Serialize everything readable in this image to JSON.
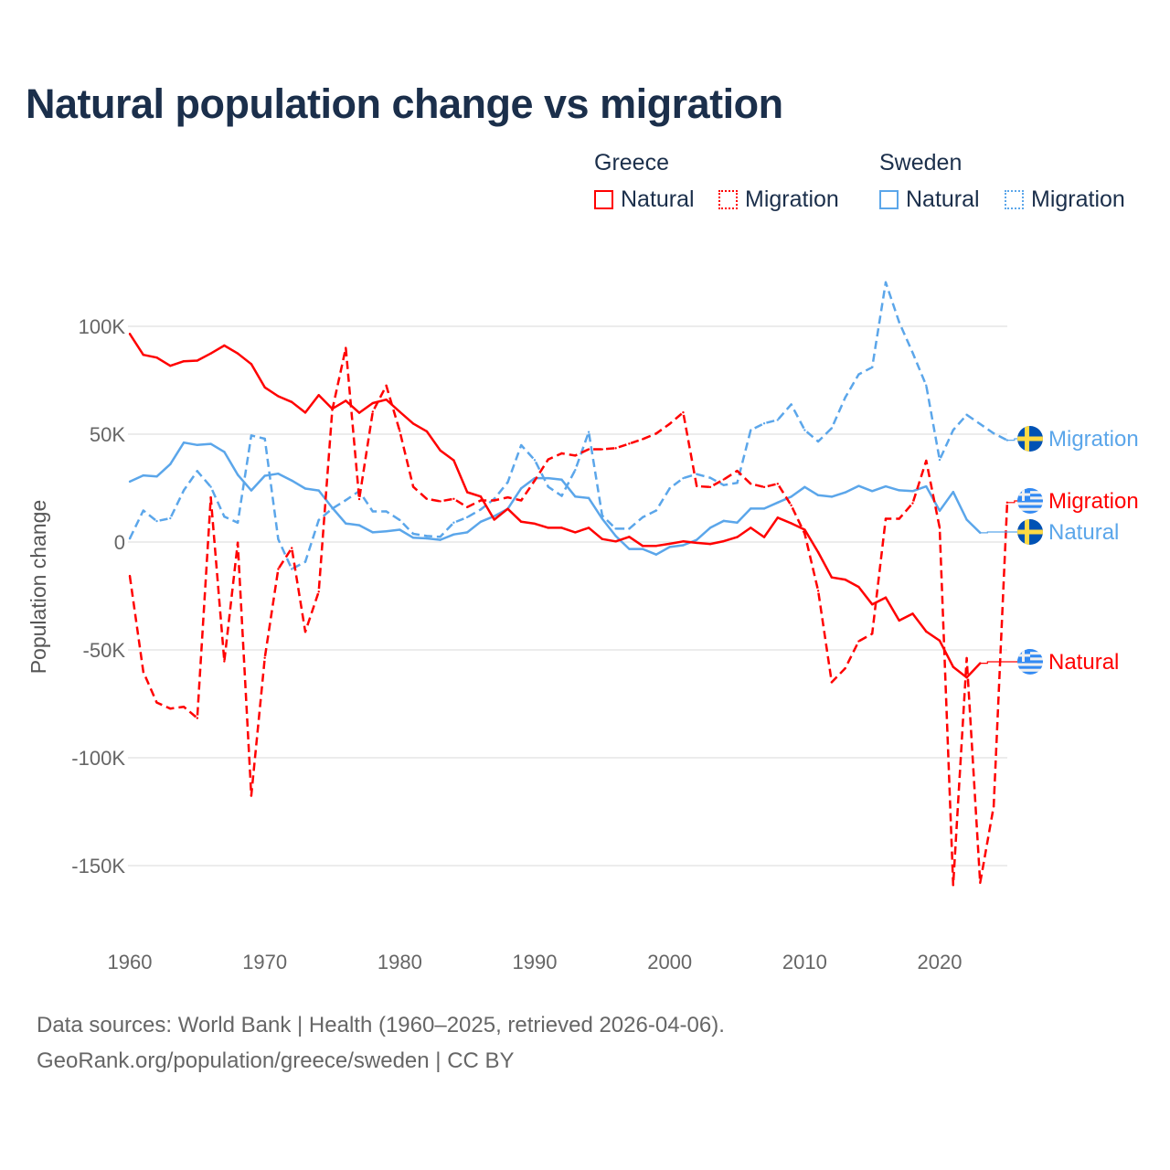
{
  "title": "Natural population change vs migration",
  "legend": {
    "groups": [
      {
        "name": "Greece",
        "items": [
          "Natural",
          "Migration"
        ]
      },
      {
        "name": "Sweden",
        "items": [
          "Natural",
          "Migration"
        ]
      }
    ]
  },
  "colors": {
    "greece": "#ff0000",
    "sweden": "#5ba6ea",
    "title": "#1b2f4b"
  },
  "footer": {
    "line1": "Data sources: World Bank | Health (1960–2025, retrieved 2026-04-06).",
    "line2": "GeoRank.org/population/greece/sweden | CC BY"
  },
  "chart_data": {
    "type": "line",
    "title": "Natural population change vs migration",
    "xlabel": "",
    "ylabel": "Population change",
    "xlim": [
      1960,
      2025
    ],
    "ylim": [
      -165000,
      125000
    ],
    "x_ticks": [
      1960,
      1970,
      1980,
      1990,
      2000,
      2010,
      2020
    ],
    "x_tick_labels": [
      "1960",
      "1970",
      "1980",
      "1990",
      "2000",
      "2010",
      "2020"
    ],
    "y_ticks": [
      -150000,
      -100000,
      -50000,
      0,
      50000,
      100000
    ],
    "y_tick_labels": [
      "-150K",
      "-100K",
      "-50K",
      "0",
      "50K",
      "100K"
    ],
    "grid": true,
    "legend_placement": "top-right",
    "series": [
      {
        "name": "Greece Natural",
        "country": "Greece",
        "kind": "Natural",
        "end_label": "Natural",
        "flag": "greece-flag",
        "start": 1960,
        "values": [
          96.5,
          86.8,
          85.5,
          81.7,
          83.8,
          84.1,
          87.4,
          91.1,
          87.4,
          82.5,
          71.7,
          67.6,
          64.9,
          60,
          68.1,
          61.8,
          65.5,
          59.9,
          64.4,
          66,
          60.4,
          54.9,
          51.3,
          42.5,
          37.9,
          23.1,
          21.1,
          10.4,
          15.4,
          9.4,
          8.5,
          6.6,
          6.6,
          4.5,
          6.6,
          1.4,
          0.3,
          2.4,
          -1.8,
          -1.8,
          -0.8,
          0.3,
          -0.4,
          -0.9,
          0.4,
          2.3,
          6.6,
          2.3,
          11.3,
          8.7,
          5.7,
          -4.7,
          -16.4,
          -17.4,
          -20.8,
          -28.9,
          -25.7,
          -36.4,
          -33.2,
          -41.5,
          -45.7,
          -57.9,
          -62.8,
          -56.2
        ]
      },
      {
        "name": "Greece Migration",
        "country": "Greece",
        "kind": "Migration",
        "end_label": "Migration",
        "flag": "greece-flag",
        "start": 1960,
        "values": [
          -15.7,
          -60.2,
          -74.4,
          -77.2,
          -76.4,
          -81.6,
          20.7,
          -55.3,
          -0.3,
          -117.6,
          -53.7,
          -12.5,
          -2.8,
          -41.6,
          -23,
          61.2,
          90,
          19.9,
          60.4,
          72.5,
          51.5,
          25.6,
          20,
          18.9,
          20,
          16.2,
          19.3,
          19.3,
          20.7,
          19.3,
          28.5,
          38.3,
          41.1,
          40.1,
          43,
          43,
          43.5,
          45.6,
          47.7,
          50.3,
          54.8,
          60.1,
          25.9,
          25.5,
          29,
          33,
          27,
          25.5,
          27,
          17,
          3.8,
          -22.6,
          -65,
          -58.5,
          -46,
          -42.5,
          10.8,
          10.8,
          18,
          37.7,
          6.6,
          -159,
          -53.8,
          -158,
          -122.6,
          18.3
        ]
      },
      {
        "name": "Sweden Natural",
        "country": "Sweden",
        "kind": "Natural",
        "end_label": "Natural",
        "flag": "sweden-flag",
        "start": 1960,
        "values": [
          28,
          30.9,
          30.4,
          36.1,
          46.1,
          45,
          45.5,
          41.8,
          31.2,
          23.9,
          30.7,
          31.7,
          28.5,
          24.8,
          23.9,
          15.9,
          8.6,
          7.8,
          4.5,
          5,
          5.7,
          2,
          1.7,
          1,
          3.5,
          4.5,
          9.4,
          12,
          15.4,
          24.9,
          29.6,
          29.6,
          28.9,
          21.1,
          20.4,
          10.8,
          2.8,
          -3.2,
          -3.2,
          -5.8,
          -2.3,
          -1.5,
          1,
          6.6,
          9.8,
          9,
          15.5,
          15.5,
          18.3,
          21,
          25.5,
          21.7,
          21,
          23,
          26,
          23.6,
          25.8,
          24,
          23.6,
          25.8,
          14.5,
          23.2,
          10.4,
          4.3
        ]
      },
      {
        "name": "Sweden Migration",
        "country": "Sweden",
        "kind": "Migration",
        "end_label": "Migration",
        "flag": "sweden-flag",
        "start": 1960,
        "values": [
          1.6,
          14.6,
          9.7,
          11,
          24,
          32.9,
          25.6,
          11.8,
          9,
          49.4,
          47.9,
          1.3,
          -12.5,
          -9.2,
          10.2,
          15.5,
          19.4,
          23.6,
          14.2,
          14.2,
          10.2,
          3.8,
          2.8,
          2.4,
          9,
          11.5,
          15.1,
          20,
          27.7,
          44.9,
          38,
          25.6,
          21.4,
          33.4,
          51,
          12.3,
          6.2,
          6.2,
          11.5,
          14.6,
          24.9,
          29.6,
          31.5,
          29.8,
          26.4,
          27.4,
          51.9,
          55,
          56.6,
          63.8,
          51.9,
          46.6,
          52.8,
          67,
          77.7,
          81,
          120.4,
          101.9,
          87.7,
          72.6,
          38.1,
          51.9,
          59,
          54.7,
          50.4,
          47.2
        ]
      }
    ],
    "value_unit": "thousands"
  }
}
